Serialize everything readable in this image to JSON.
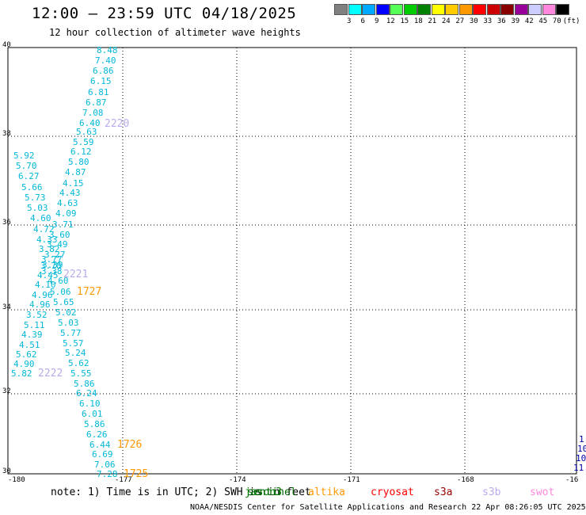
{
  "header": {
    "title": "12:00 – 23:59 UTC 04/18/2025",
    "subtitle": "12 hour collection of altimeter wave heights"
  },
  "legend": {
    "colors": [
      "#808080",
      "#00ffff",
      "#00aaff",
      "#0000ff",
      "#55ff55",
      "#00cc00",
      "#008000",
      "#ffff00",
      "#ffcc00",
      "#ff9900",
      "#ff0000",
      "#cc0000",
      "#880000",
      "#990099",
      "#ccccff",
      "#ff88dd",
      "#000000"
    ],
    "labels": [
      "3",
      "6",
      "9",
      "12",
      "15",
      "18",
      "21",
      "24",
      "27",
      "30",
      "33",
      "36",
      "39",
      "42",
      "45",
      "70",
      "(ft)"
    ]
  },
  "axes": {
    "lat_labels": [
      "40",
      "38",
      "36",
      "34",
      "32",
      "30"
    ],
    "lon_labels": [
      "-180",
      "-177",
      "-174",
      "-171",
      "-168",
      "-16"
    ]
  },
  "wave_heights": {
    "track_a": [
      "8.48",
      "7.40",
      "6.86",
      "6.15",
      "6.81",
      "6.87",
      "7.08",
      "6.40",
      "5.63",
      "5.59",
      "6.12",
      "5.80",
      "4.87",
      "4.15",
      "4.43",
      "4.63",
      "4.09",
      "3.71",
      "3.60",
      "3.49",
      "3.27",
      "3.39",
      "3.38",
      "4.60",
      "5.06",
      "5.65",
      "5.02",
      "5.03",
      "5.77",
      "5.57",
      "5.24",
      "5.62",
      "5.55",
      "5.86",
      "6.24",
      "6.10",
      "6.01",
      "5.86",
      "6.26",
      "6.44",
      "6.69",
      "7.06",
      "7.28"
    ],
    "track_b": [
      "5.92",
      "5.70",
      "6.27",
      "5.66",
      "5.73",
      "5.03",
      "4.60",
      "4.72",
      "4.33",
      "3.82",
      "3.77",
      "3.70",
      "4.45",
      "4.10",
      "4.96",
      "4.96",
      "3.52",
      "5.11",
      "4.39",
      "4.51",
      "5.62",
      "4.90",
      "5.82"
    ],
    "right_edge": [
      "1",
      "10",
      "10",
      "11."
    ]
  },
  "pass_times": {
    "p2220": "2220",
    "p2221": "2221",
    "p1727": "1727",
    "p2222": "2222",
    "p1726": "1726",
    "p1725": "1725"
  },
  "satellites": [
    {
      "name": "jason3",
      "color": "#008000"
    },
    {
      "name": "sentinel",
      "color": "#006600"
    },
    {
      "name": "altika",
      "color": "#ff9900"
    },
    {
      "name": "cryosat",
      "color": "#ff0000"
    },
    {
      "name": "s3a",
      "color": "#990000"
    },
    {
      "name": "s3b",
      "color": "#bbaaee"
    },
    {
      "name": "swot",
      "color": "#ff88dd"
    }
  ],
  "footer": {
    "note": "note: 1) Time is in UTC; 2) SWH is in feet",
    "credit": "NOAA/NESDIS Center for Satellite Applications and Research   22 Apr 08:26:05 UTC 2025"
  }
}
